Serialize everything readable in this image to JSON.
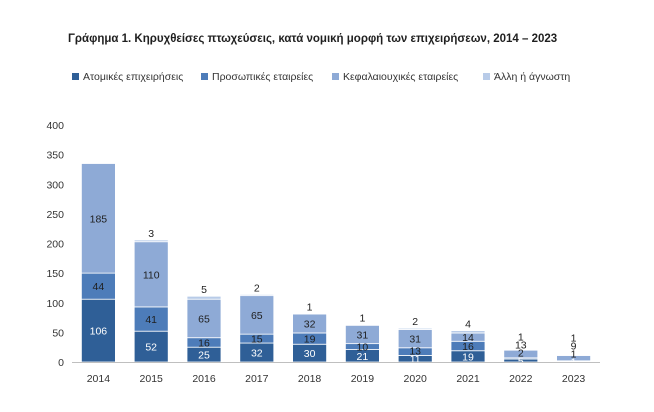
{
  "chart_data": {
    "type": "bar",
    "stacked": true,
    "title": "Γράφημα 1. Κηρυχθείσες πτωχεύσεις, κατά νομική μορφή των επιχειρήσεων, 2014 – 2023",
    "xlabel": "",
    "ylabel": "",
    "ylim": [
      0,
      400
    ],
    "yticks": [
      0,
      50,
      100,
      150,
      200,
      250,
      300,
      350,
      400
    ],
    "grid": false,
    "legend_position": "top",
    "categories": [
      "2014",
      "2015",
      "2016",
      "2017",
      "2018",
      "2019",
      "2020",
      "2021",
      "2022",
      "2023"
    ],
    "series": [
      {
        "name": "Ατομικές επιχειρήσεις",
        "color": "#2f5f97",
        "label_color": "#ffffff",
        "values": [
          106,
          52,
          25,
          32,
          30,
          21,
          11,
          19,
          5,
          1
        ]
      },
      {
        "name": "Προσωπικές εταιρείες",
        "color": "#4d7cb9",
        "label_color": "#1f1f1f",
        "values": [
          44,
          41,
          16,
          15,
          19,
          10,
          13,
          16,
          2,
          1
        ]
      },
      {
        "name": "Κεφαλαιουχικές εταιρείες",
        "color": "#8eaad6",
        "label_color": "#1f1f1f",
        "values": [
          185,
          110,
          65,
          65,
          32,
          31,
          31,
          14,
          13,
          9
        ]
      },
      {
        "name": "Άλλη ή άγνωστη",
        "color": "#b8cbe8",
        "label_color": "#1f1f1f",
        "values": [
          0,
          3,
          5,
          2,
          1,
          1,
          2,
          4,
          1,
          1
        ]
      }
    ],
    "data_labels": [
      [
        "106",
        "44",
        "185",
        ""
      ],
      [
        "52",
        "41",
        "110",
        "3"
      ],
      [
        "25",
        "16",
        "65",
        "5"
      ],
      [
        "32",
        "15",
        "65",
        "2"
      ],
      [
        "30",
        "19",
        "32",
        "1"
      ],
      [
        "21",
        "10",
        "31",
        "1"
      ],
      [
        "11",
        "13",
        "31",
        "2"
      ],
      [
        "19",
        "16",
        "14",
        "4"
      ],
      [
        "5",
        "2",
        "13",
        "1"
      ],
      [
        "1",
        "1",
        "9",
        "1"
      ]
    ]
  }
}
